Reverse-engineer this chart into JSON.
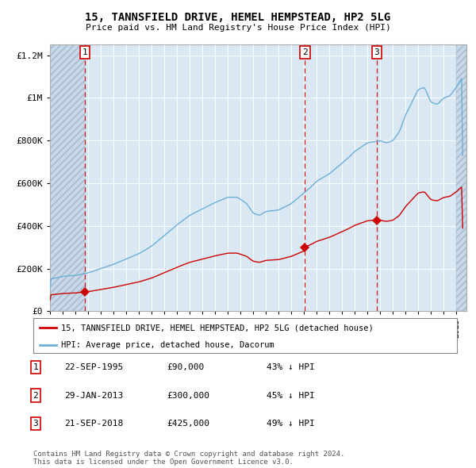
{
  "title": "15, TANNSFIELD DRIVE, HEMEL HEMPSTEAD, HP2 5LG",
  "subtitle": "Price paid vs. HM Land Registry's House Price Index (HPI)",
  "transactions": [
    {
      "num": 1,
      "date_label": "22-SEP-1995",
      "price": 90000,
      "hpi_pct": "43% ↓ HPI",
      "year": 1995.73
    },
    {
      "num": 2,
      "date_label": "29-JAN-2013",
      "price": 300000,
      "hpi_pct": "45% ↓ HPI",
      "year": 2013.08
    },
    {
      "num": 3,
      "date_label": "21-SEP-2018",
      "price": 425000,
      "hpi_pct": "49% ↓ HPI",
      "year": 2018.73
    }
  ],
  "hpi_color": "#6baed6",
  "price_color": "#cc0000",
  "bg_color": "#dae8f4",
  "legend_label_price": "15, TANNSFIELD DRIVE, HEMEL HEMPSTEAD, HP2 5LG (detached house)",
  "legend_label_hpi": "HPI: Average price, detached house, Dacorum",
  "footer": "Contains HM Land Registry data © Crown copyright and database right 2024.\nThis data is licensed under the Open Government Licence v3.0.",
  "ylim": [
    0,
    1250000
  ],
  "xlim_start": 1993.0,
  "xlim_end": 2025.8,
  "hatch_end": 1995.73,
  "hatch_start_right": 2025.0,
  "yticks": [
    0,
    200000,
    400000,
    600000,
    800000,
    1000000,
    1200000
  ],
  "ytick_labels": [
    "£0",
    "£200K",
    "£400K",
    "£600K",
    "£800K",
    "£1M",
    "£1.2M"
  ]
}
